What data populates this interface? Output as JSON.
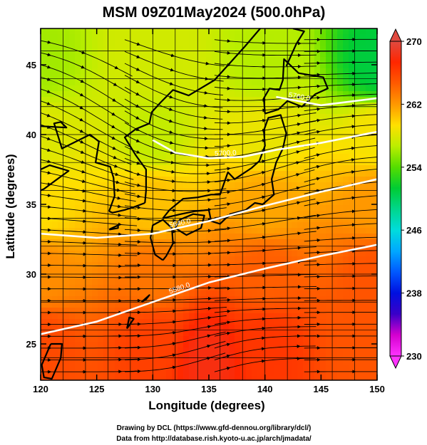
{
  "figure": {
    "title": "MSM 09Z01May2024 (500.0hPa)",
    "credit_line1": "Drawing by DCL (https://www.gfd-dennou.org/library/dcl/)",
    "credit_line2": "Data from http://database.rish.kyoto-u.ac.jp/arch/jmadata/"
  },
  "chart_data": {
    "type": "heatmap",
    "title": "MSM 09Z01May2024 (500.0hPa)",
    "xlabel": "Longitude (degrees)",
    "ylabel": "Latitude  (degrees)",
    "xlim": [
      120,
      150
    ],
    "ylim": [
      22.4,
      47.6
    ],
    "x_ticks": [
      120,
      125,
      130,
      135,
      140,
      145,
      150
    ],
    "y_ticks": [
      25,
      30,
      35,
      40,
      45
    ],
    "grid": true,
    "overlays": [
      "streamlines",
      "geopotential-height contours",
      "coastlines"
    ],
    "colorbar": {
      "min": 230,
      "max": 270,
      "ticks": [
        230,
        238,
        246,
        254,
        262,
        270
      ],
      "colors": [
        "#ff33ff",
        "#d400cf",
        "#3a00c8",
        "#0010e0",
        "#0058ff",
        "#00a8ff",
        "#00dcdc",
        "#00d68c",
        "#00cc33",
        "#55dd00",
        "#bbee00",
        "#ffe000",
        "#ff9800",
        "#ff5a00",
        "#ff2600",
        "#e04a40"
      ],
      "placement": "right"
    },
    "contours": [
      {
        "label": "5580.0",
        "points": [
          [
            120,
            25.7
          ],
          [
            125,
            26.6
          ],
          [
            130,
            28.0
          ],
          [
            135,
            29.4
          ],
          [
            140,
            30.4
          ],
          [
            145,
            31.3
          ],
          [
            150,
            32.1
          ]
        ]
      },
      {
        "label": "5640.0",
        "points": [
          [
            120,
            32.9
          ],
          [
            125,
            32.6
          ],
          [
            130,
            32.9
          ],
          [
            135,
            33.8
          ],
          [
            140,
            34.9
          ],
          [
            145,
            35.9
          ],
          [
            150,
            36.8
          ]
        ]
      },
      {
        "label": "5700.0",
        "points": [
          [
            130,
            39.6
          ],
          [
            132,
            38.7
          ],
          [
            135,
            38.3
          ],
          [
            138,
            38.4
          ],
          [
            141,
            38.9
          ],
          [
            145,
            39.4
          ],
          [
            150,
            40.2
          ]
        ]
      },
      {
        "label": "5760.0",
        "points": [
          [
            141,
            42.7
          ],
          [
            145,
            42.1
          ],
          [
            150,
            42.6
          ]
        ]
      }
    ],
    "temperature_field": [
      {
        "lon": 120,
        "lat": 45,
        "value": 256.0
      },
      {
        "lon": 130,
        "lat": 45,
        "value": 257.5
      },
      {
        "lon": 140,
        "lat": 45,
        "value": 256.5
      },
      {
        "lon": 150,
        "lat": 45,
        "value": 251.0
      },
      {
        "lon": 120,
        "lat": 40,
        "value": 258.0
      },
      {
        "lon": 130,
        "lat": 40,
        "value": 257.0
      },
      {
        "lon": 140,
        "lat": 40,
        "value": 258.5
      },
      {
        "lon": 150,
        "lat": 40,
        "value": 259.0
      },
      {
        "lon": 120,
        "lat": 35,
        "value": 259.5
      },
      {
        "lon": 130,
        "lat": 35,
        "value": 260.5
      },
      {
        "lon": 140,
        "lat": 35,
        "value": 261.5
      },
      {
        "lon": 150,
        "lat": 35,
        "value": 262.0
      },
      {
        "lon": 120,
        "lat": 30,
        "value": 262.5
      },
      {
        "lon": 130,
        "lat": 30,
        "value": 263.5
      },
      {
        "lon": 140,
        "lat": 30,
        "value": 264.5
      },
      {
        "lon": 150,
        "lat": 30,
        "value": 265.0
      },
      {
        "lon": 120,
        "lat": 25,
        "value": 265.5
      },
      {
        "lon": 130,
        "lat": 25,
        "value": 266.0
      },
      {
        "lon": 135,
        "lat": 24,
        "value": 268.0
      },
      {
        "lon": 140,
        "lat": 25,
        "value": 266.5
      },
      {
        "lon": 150,
        "lat": 25,
        "value": 265.0
      }
    ]
  }
}
